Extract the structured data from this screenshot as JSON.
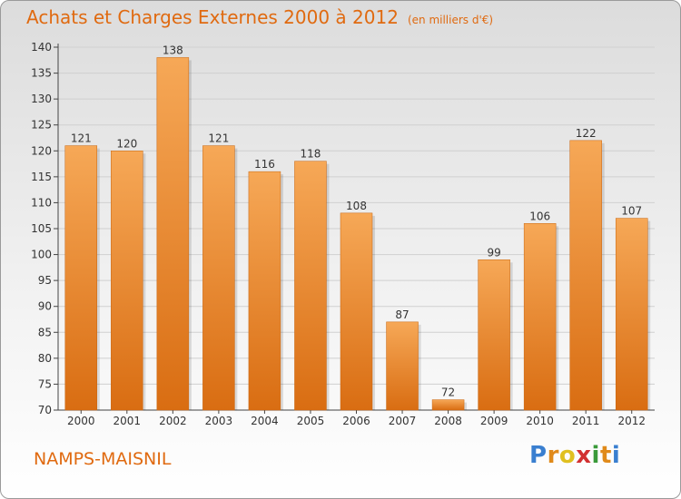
{
  "title": "Achats et Charges Externes 2000 à 2012",
  "unit": "(en milliers d'€)",
  "commune": "NAMPS-MAISNIL",
  "brand": {
    "letters": [
      "P",
      "r",
      "o",
      "x",
      "i",
      "t",
      "i"
    ],
    "colors": [
      "#3a7fd0",
      "#e08a1a",
      "#e0c020",
      "#d23030",
      "#3a9a3a",
      "#e08a1a",
      "#3a7fd0"
    ]
  },
  "colors": {
    "bar_top": "#f6a857",
    "bar_bottom": "#d96d12",
    "accent": "#e06a10"
  },
  "chart_data": {
    "type": "bar",
    "categories": [
      "2000",
      "2001",
      "2002",
      "2003",
      "2004",
      "2005",
      "2006",
      "2007",
      "2008",
      "2009",
      "2010",
      "2011",
      "2012"
    ],
    "values": [
      121,
      120,
      138,
      121,
      116,
      118,
      108,
      87,
      72,
      99,
      106,
      122,
      107
    ],
    "data_labels": [
      "121",
      "120",
      "138",
      "121",
      "116",
      "118",
      "108",
      "87",
      "72",
      "99",
      "106",
      "122",
      "107"
    ],
    "yticks": [
      70,
      75,
      80,
      85,
      90,
      95,
      100,
      105,
      110,
      115,
      120,
      125,
      130,
      135,
      140
    ],
    "ylim": [
      70,
      140
    ],
    "grid": true,
    "xlabel": "",
    "ylabel": ""
  }
}
